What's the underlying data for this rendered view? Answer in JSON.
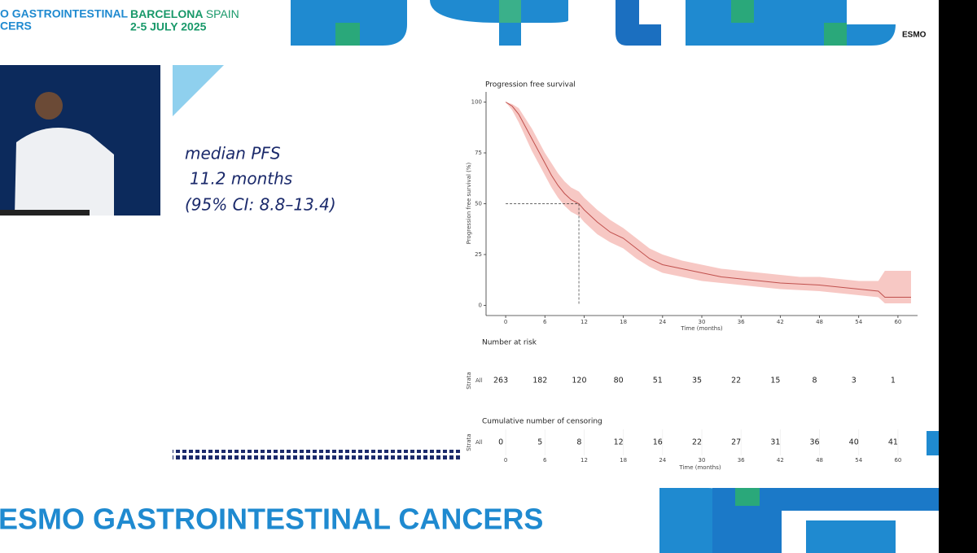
{
  "header": {
    "event_cut": "O GASTROINTESTINAL",
    "event_cut2": "CERS",
    "city": "BARCELONA",
    "country": "SPAIN",
    "dates": "2-5 JULY 2025",
    "logo": "ESMO"
  },
  "slide": {
    "line1": "median PFS",
    "line2": "11.2 months",
    "line3": "(95% CI: 8.8–13.4)"
  },
  "footer": {
    "banner": "ESMO GASTROINTESTINAL CANCERS"
  },
  "chart_data": {
    "type": "km",
    "title": "Progression free survival",
    "x_label": "Time (months)",
    "y_label": "Progression free survival (%)",
    "color": "#c0504d",
    "band_color": "#f4b6b0",
    "x": [
      0,
      1,
      2,
      3,
      4,
      5,
      6,
      7,
      8,
      9,
      10,
      11.2,
      12,
      14,
      16,
      18,
      20,
      22,
      24,
      27,
      30,
      33,
      36,
      39,
      42,
      45,
      48,
      51,
      54,
      57,
      58,
      62
    ],
    "values": [
      100,
      98,
      94,
      88,
      82,
      76,
      70,
      64,
      59,
      55,
      52,
      50,
      47,
      41,
      36,
      33,
      28,
      23,
      20,
      18,
      16,
      14,
      13,
      12,
      11,
      10.5,
      10,
      9,
      8,
      7,
      4,
      4
    ],
    "ci_upper": [
      100,
      99,
      97,
      92,
      87,
      81,
      75,
      70,
      65,
      61,
      58,
      56,
      53,
      47,
      42,
      38,
      33,
      28,
      25,
      22,
      20,
      18,
      17,
      16,
      15,
      14,
      14,
      13,
      12,
      12,
      17,
      17
    ],
    "ci_lower": [
      100,
      96,
      90,
      83,
      76,
      70,
      64,
      58,
      53,
      49,
      46,
      44,
      41,
      35,
      31,
      28,
      23,
      19,
      16,
      14,
      12,
      11,
      10,
      9,
      8,
      7.5,
      7,
      6,
      5,
      4,
      1,
      1
    ],
    "median": {
      "x": 11.2,
      "y": 50
    },
    "xlim": [
      -3,
      63
    ],
    "xticks": [
      0,
      6,
      12,
      18,
      24,
      30,
      36,
      42,
      48,
      54,
      60
    ],
    "ylim": [
      -5,
      105
    ],
    "yticks": [
      0,
      25,
      50,
      75,
      100
    ],
    "risk_table": {
      "title": "Number at risk",
      "axis_label": "Strata",
      "stratum": "All",
      "values": [
        263,
        182,
        120,
        80,
        51,
        35,
        22,
        15,
        8,
        3,
        1
      ]
    },
    "censor_table": {
      "title": "Cumulative number of censoring",
      "axis_label": "Strata",
      "stratum": "All",
      "values": [
        0,
        5,
        8,
        12,
        16,
        22,
        27,
        31,
        36,
        40,
        41
      ]
    }
  }
}
